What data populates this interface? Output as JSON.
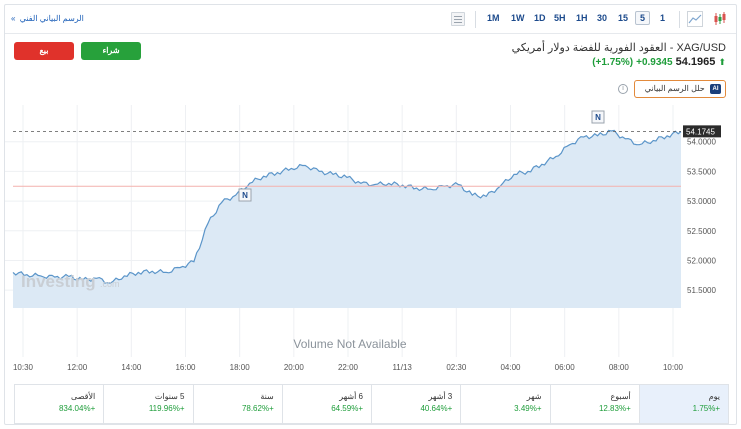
{
  "toolbar": {
    "technical_chart_link": "الرسم البياني الفني",
    "timeframes": [
      "1M",
      "1W",
      "1D",
      "5H",
      "1H",
      "30",
      "15",
      "5",
      "1"
    ],
    "active_timeframe": "5"
  },
  "header": {
    "sell_label": "بيع",
    "buy_label": "شراء",
    "title": "XAG/USD - العقود الفورية للفضة دولار أمريكي",
    "price": "54.1965",
    "change": "+0.9345",
    "change_pct": "(+1.75%)",
    "ai_button_label": "حلل الرسم البياني",
    "ai_badge": "AI"
  },
  "chart": {
    "watermark": "Investing",
    "watermark_suffix": ".com",
    "volume_text": "Volume Not Available",
    "current_price_label": "54.1745",
    "event_marker": "N",
    "colors": {
      "line": "#5b95c9",
      "fill": "#dce9f5",
      "ref_line": "#f3b1ad",
      "dashed": "#555555",
      "tag_bg": "#2b2b2b"
    }
  },
  "chart_data": {
    "type": "area",
    "x_ticks": [
      "10:30",
      "12:00",
      "14:00",
      "16:00",
      "18:00",
      "20:00",
      "22:00",
      "11/13",
      "02:30",
      "04:00",
      "06:00",
      "08:00",
      "10:00"
    ],
    "y_ticks": [
      "54.0000",
      "53.5000",
      "53.0000",
      "52.5000",
      "52.0000",
      "51.5000"
    ],
    "ylim": [
      51.2,
      54.45
    ],
    "x": [
      "10:30",
      "11:00",
      "11:30",
      "12:00",
      "12:30",
      "13:00",
      "13:30",
      "14:00",
      "14:30",
      "15:00",
      "15:30",
      "16:00",
      "16:30",
      "17:00",
      "17:30",
      "18:00",
      "18:30",
      "19:00",
      "19:30",
      "20:00",
      "20:30",
      "21:00",
      "21:30",
      "22:00",
      "22:30",
      "23:00",
      "23:30",
      "11/13",
      "00:30",
      "01:00",
      "01:30",
      "02:00",
      "02:30",
      "03:00",
      "03:30",
      "04:00",
      "04:30",
      "05:00",
      "05:30",
      "06:00",
      "06:30",
      "07:00",
      "07:30",
      "08:00",
      "08:30",
      "09:00",
      "09:30",
      "10:00",
      "10:15"
    ],
    "values": [
      51.8,
      51.76,
      51.74,
      51.72,
      51.73,
      51.67,
      51.7,
      51.62,
      51.74,
      51.8,
      51.82,
      51.8,
      51.88,
      51.98,
      52.62,
      52.98,
      53.1,
      53.3,
      53.42,
      53.48,
      53.55,
      53.6,
      53.5,
      53.45,
      53.4,
      53.3,
      53.28,
      53.3,
      53.27,
      53.22,
      53.2,
      53.25,
      53.28,
      53.1,
      53.08,
      53.25,
      53.45,
      53.5,
      53.62,
      53.75,
      53.95,
      54.08,
      54.1,
      54.18,
      54.05,
      53.95,
      54.02,
      54.1,
      54.17
    ],
    "reference_level": 53.25,
    "current_level": 54.1745
  },
  "stats": [
    {
      "label": "يوم",
      "value": "+1.75%"
    },
    {
      "label": "أسبوع",
      "value": "+12.83%"
    },
    {
      "label": "شهر",
      "value": "+3.49%"
    },
    {
      "label": "3 أشهر",
      "value": "+40.64%"
    },
    {
      "label": "6 أشهر",
      "value": "+64.59%"
    },
    {
      "label": "سنة",
      "value": "+78.62%"
    },
    {
      "label": "5 سنوات",
      "value": "+119.96%"
    },
    {
      "label": "الأقصى",
      "value": "+834.04%"
    }
  ]
}
